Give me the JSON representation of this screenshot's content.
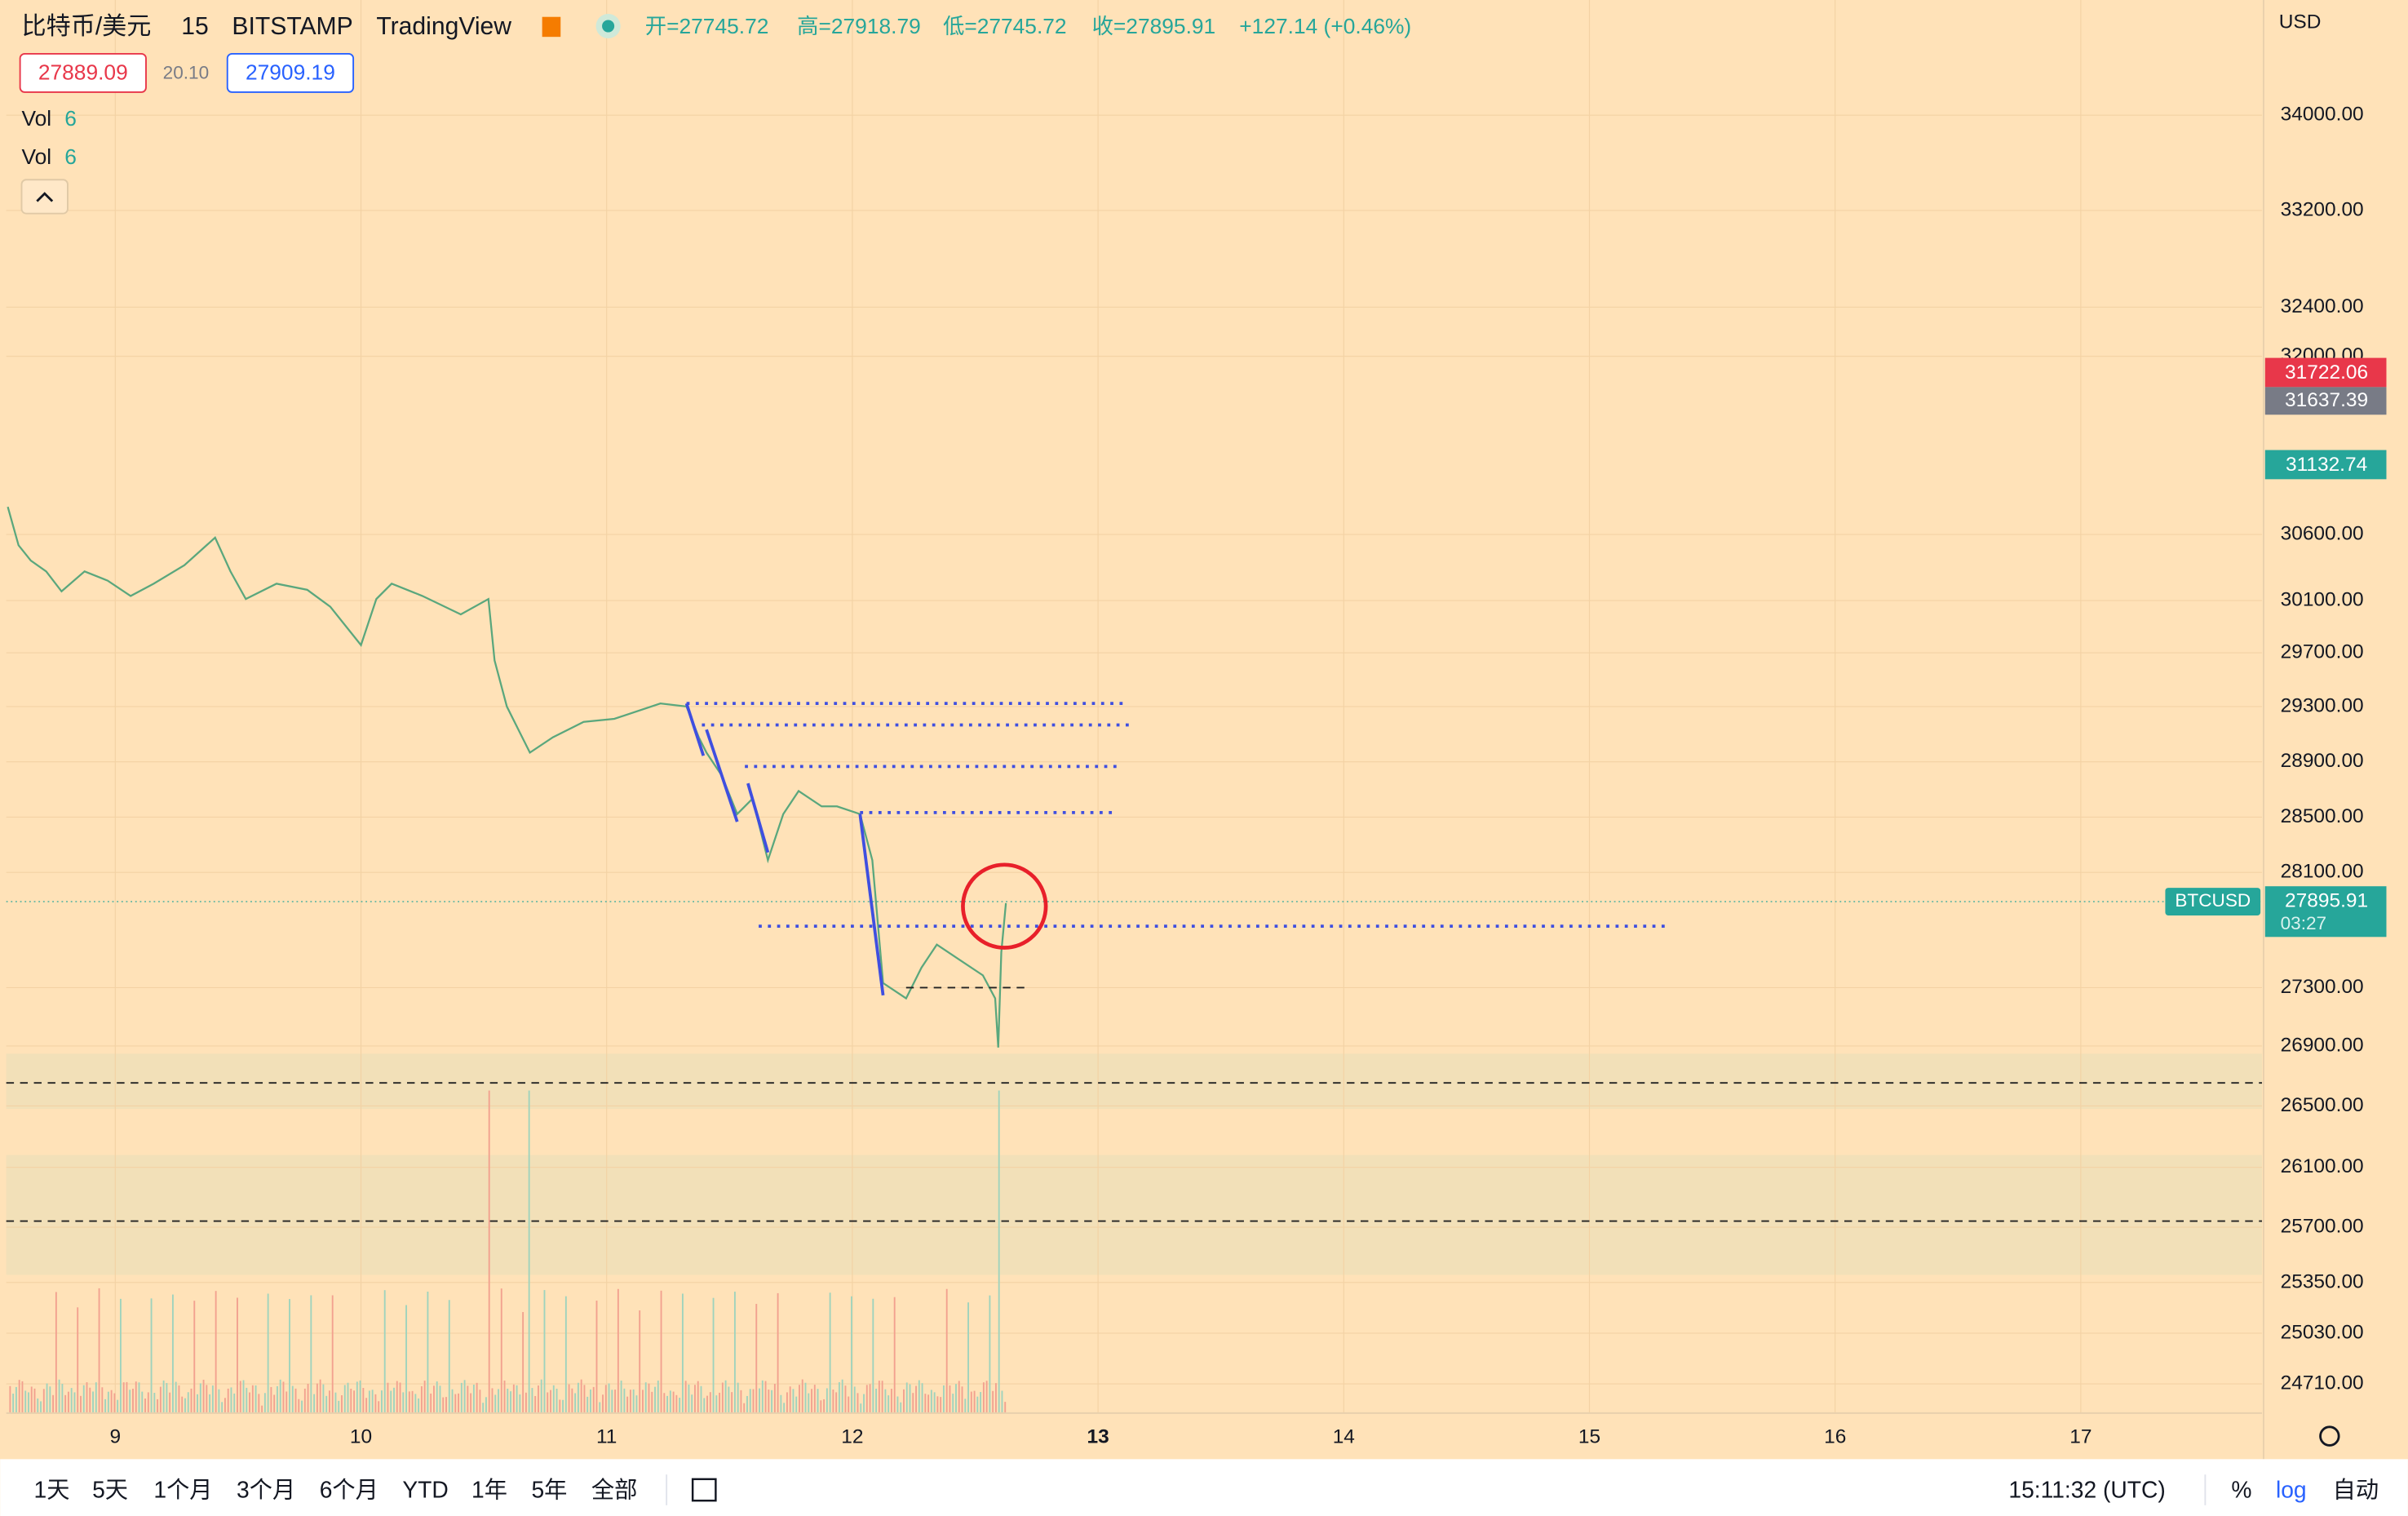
{
  "header": {
    "symbol": "比特币/美元",
    "interval": "15",
    "exchange": "BITSTAMP",
    "source": "TradingView",
    "open": "开=27745.72",
    "high": "高=27918.79",
    "low": "低=27745.72",
    "close": "收=27895.91",
    "change": "+127.14 (+0.46%)",
    "bid": "27889.09",
    "spread": "20.10",
    "ask": "27909.19"
  },
  "indicators": [
    {
      "name": "Vol",
      "value": "6"
    },
    {
      "name": "Vol",
      "value": "6"
    }
  ],
  "currency": "USD",
  "price_axis": [
    "34000.00",
    "33200.00",
    "32400.00",
    "32000.00",
    "30600.00",
    "30100.00",
    "29700.00",
    "29300.00",
    "28900.00",
    "28500.00",
    "28100.00",
    "27300.00",
    "26900.00",
    "26500.00",
    "26100.00",
    "25700.00",
    "25350.00",
    "25030.00",
    "24710.00"
  ],
  "badges": {
    "alert_1": "31722.06",
    "alert_2": "31637.39",
    "alert_3": "31132.74",
    "symbol": "BTCUSD",
    "last_price": "27895.91",
    "countdown": "03:27"
  },
  "time_axis": [
    "9",
    "10",
    "11",
    "12",
    "13",
    "14",
    "15",
    "16",
    "17"
  ],
  "toolbar": {
    "ranges": [
      "1天",
      "5天",
      "1个月",
      "3个月",
      "6个月",
      "YTD",
      "1年",
      "5年",
      "全部"
    ],
    "clock": "15:11:32 (UTC)",
    "percent": "%",
    "log": "log",
    "auto": "自动"
  }
}
